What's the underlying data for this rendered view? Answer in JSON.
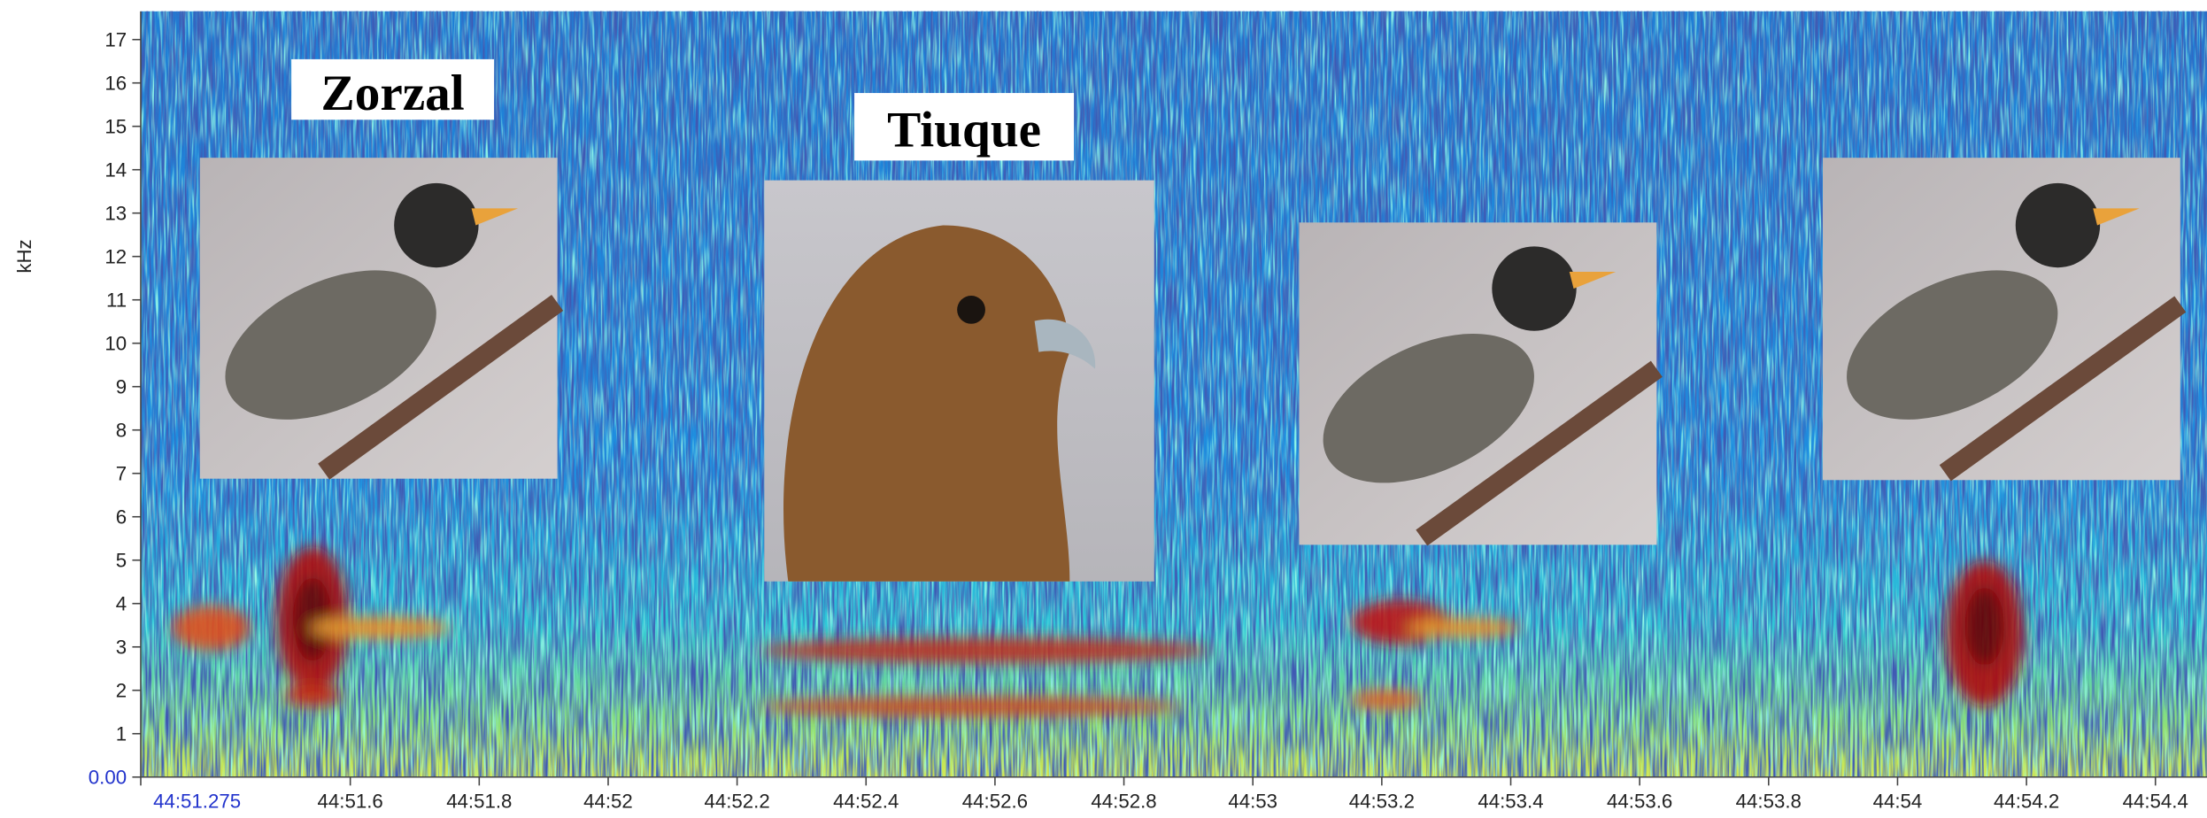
{
  "chart_data": {
    "type": "spectrogram",
    "y_label": "kHz",
    "annotations": [
      "Zorzal",
      "Tiuque"
    ],
    "ylim": [
      0,
      17.65
    ],
    "yticks": [
      {
        "value": 0,
        "label": "0.00"
      },
      1,
      2,
      3,
      4,
      5,
      6,
      7,
      8,
      9,
      10,
      11,
      12,
      13,
      14,
      15,
      16,
      17
    ],
    "xlim": [
      2691.275,
      2694.48
    ],
    "xticks": [
      {
        "value": 2691.275,
        "label": "44:51.275"
      },
      {
        "value": 2691.6,
        "label": "44:51.6"
      },
      {
        "value": 2691.8,
        "label": "44:51.8"
      },
      {
        "value": 2692,
        "label": "44:52"
      },
      {
        "value": 2692.2,
        "label": "44:52.2"
      },
      {
        "value": 2692.4,
        "label": "44:52.4"
      },
      {
        "value": 2692.6,
        "label": "44:52.6"
      },
      {
        "value": 2692.8,
        "label": "44:52.8"
      },
      {
        "value": 2693,
        "label": "44:53"
      },
      {
        "value": 2693.2,
        "label": "44:53.2"
      },
      {
        "value": 2693.4,
        "label": "44:53.4"
      },
      {
        "value": 2693.6,
        "label": "44:53.6"
      },
      {
        "value": 2693.8,
        "label": "44:53.8"
      },
      {
        "value": 2694,
        "label": "44:54"
      },
      {
        "value": 2694.2,
        "label": "44:54.2"
      },
      {
        "value": 2694.4,
        "label": "44:54.4"
      }
    ]
  }
}
